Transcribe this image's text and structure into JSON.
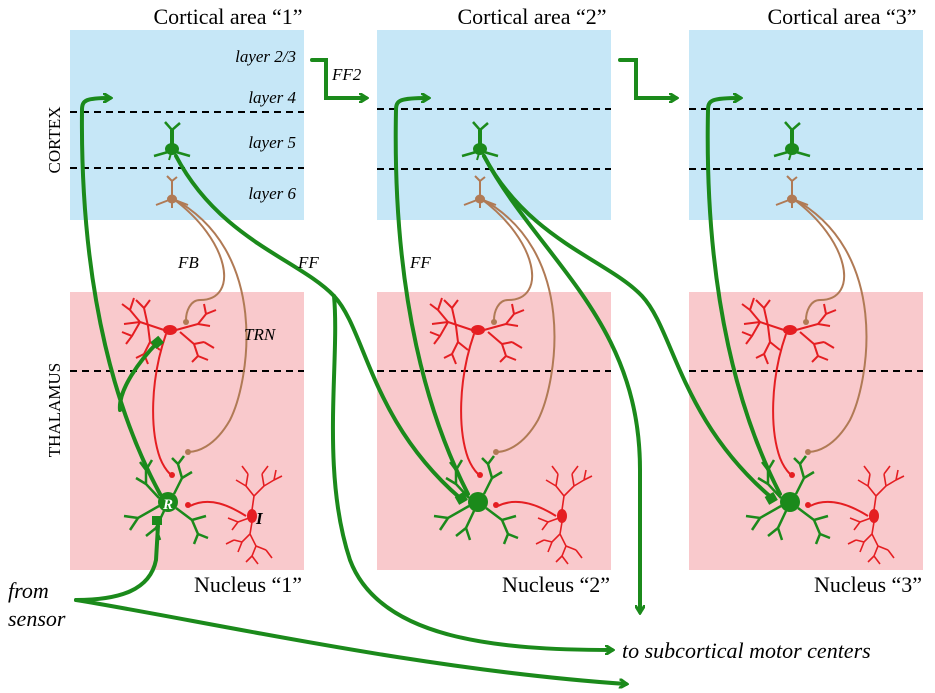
{
  "areas": [
    {
      "cortex_title": "Cortical area “1”",
      "nucleus_title": "Nucleus “1”"
    },
    {
      "cortex_title": "Cortical area “2”",
      "nucleus_title": "Nucleus “2”"
    },
    {
      "cortex_title": "Cortical area “3”",
      "nucleus_title": "Nucleus “3”"
    }
  ],
  "layers": {
    "layer23": "layer 2/3",
    "layer4": "layer 4",
    "layer5": "layer 5",
    "layer6": "layer 6"
  },
  "side_labels": {
    "cortex": "CORTEX",
    "thalamus": "THALAMUS"
  },
  "pathway_labels": {
    "ff2": "FF2",
    "fb": "FB",
    "ff_a": "FF",
    "ff_b": "FF",
    "trn": "TRN"
  },
  "cell_labels": {
    "relay": "R",
    "inter": "I"
  },
  "inputs": {
    "from_line1": "from",
    "from_line2": "sensor",
    "to_motor": "to subcortical motor centers"
  },
  "colors": {
    "cortex_bg": "#c6e7f7",
    "thalamus_bg": "#f9c9cc",
    "green": "#1b8a1b",
    "red": "#e51e22",
    "brown": "#b07a55"
  }
}
